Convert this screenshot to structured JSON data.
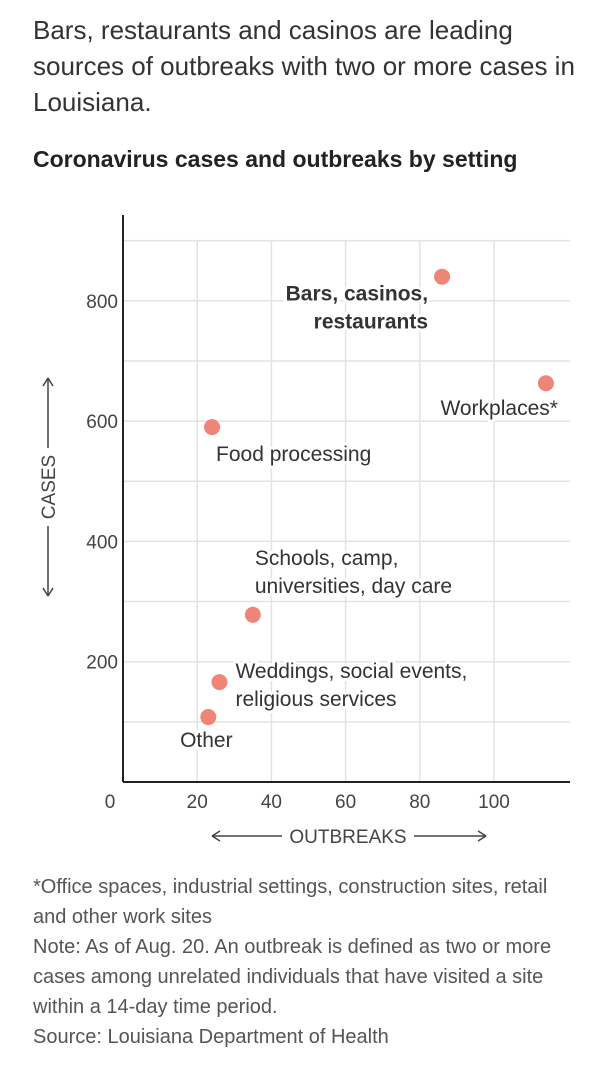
{
  "headline": "Bars, restaurants and casinos are leading sources of outbreaks with two or more cases in Louisiana.",
  "chart_data": {
    "type": "scatter",
    "title": "Coronavirus cases and outbreaks by setting",
    "xlabel": "OUTBREAKS",
    "ylabel": "CASES",
    "xlim": [
      0,
      120
    ],
    "ylim": [
      0,
      950
    ],
    "x_ticks": [
      0,
      20,
      40,
      60,
      80,
      100
    ],
    "y_ticks": [
      200,
      400,
      600,
      800
    ],
    "grid": true,
    "point_color": "#ef8577",
    "points": [
      {
        "label": "Bars, casinos,\nrestaurants",
        "x": 86,
        "y": 840,
        "bold": true
      },
      {
        "label": "Workplaces*",
        "x": 114,
        "y": 663,
        "bold": false
      },
      {
        "label": "Food processing",
        "x": 24,
        "y": 590,
        "bold": false
      },
      {
        "label": "Schools, camp,\nuniversities, day care",
        "x": 35,
        "y": 278,
        "bold": false
      },
      {
        "label": "Weddings, social events,\nreligious services",
        "x": 26,
        "y": 166,
        "bold": false
      },
      {
        "label": "Other",
        "x": 23,
        "y": 108,
        "bold": false
      }
    ]
  },
  "footnotes": {
    "asterisk": "*Office spaces, industrial settings, construction sites, retail and other work sites",
    "note": "Note: As of Aug. 20. An outbreak is defined as two or more cases among unrelated individuals that have visited a site within a 14-day time period.",
    "source": "Source: Louisiana Department of Health"
  }
}
